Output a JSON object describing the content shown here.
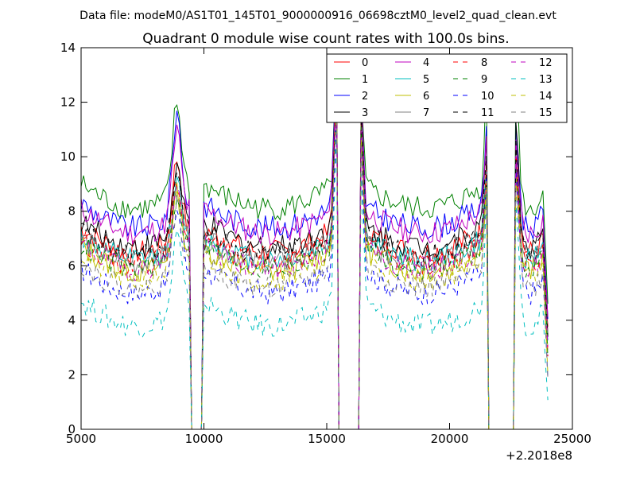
{
  "chart_data": {
    "type": "line",
    "suptitle": "Data file: modeM0/AS1T01_145T01_9000000916_06698cztM0_level2_quad_clean.evt",
    "title": "Quadrant 0 module wise count rates with 100.0s bins.",
    "xlabel": "",
    "ylabel": "",
    "x_offset_label": "+2.2018e8",
    "xlim": [
      5000,
      25000
    ],
    "ylim": [
      0,
      14
    ],
    "xticks": [
      5000,
      10000,
      15000,
      20000,
      25000
    ],
    "yticks": [
      0,
      2,
      4,
      6,
      8,
      10,
      12,
      14
    ],
    "bin_seconds": 100,
    "grid": false,
    "legend_position": "top-right",
    "legend_columns": 4,
    "gaps": [
      [
        9500,
        9900
      ],
      [
        15500,
        16300
      ],
      [
        21600,
        22600
      ]
    ],
    "series": [
      {
        "name": "0",
        "color": "#ff0000",
        "dash": "solid",
        "base": 7.4,
        "peak1": 10.3,
        "peak2": 13.5,
        "peak3": 10.0
      },
      {
        "name": "1",
        "color": "#008000",
        "dash": "solid",
        "base": 9.0,
        "peak1": 12.3,
        "peak2": 13.0,
        "peak3": 13.3
      },
      {
        "name": "2",
        "color": "#0000ff",
        "dash": "solid",
        "base": 8.3,
        "peak1": 12.0,
        "peak2": 13.0,
        "peak3": 11.5
      },
      {
        "name": "3",
        "color": "#000000",
        "dash": "solid",
        "base": 7.6,
        "peak1": 10.0,
        "peak2": 13.0,
        "peak3": 11.5
      },
      {
        "name": "4",
        "color": "#bf00bf",
        "dash": "solid",
        "base": 8.1,
        "peak1": 11.3,
        "peak2": 13.5,
        "peak3": 10.8
      },
      {
        "name": "5",
        "color": "#00bfbf",
        "dash": "solid",
        "base": 7.1,
        "peak1": 9.3,
        "peak2": 12.5,
        "peak3": 10.0
      },
      {
        "name": "6",
        "color": "#bfbf00",
        "dash": "solid",
        "base": 6.7,
        "peak1": 9.0,
        "peak2": 12.3,
        "peak3": 9.5
      },
      {
        "name": "7",
        "color": "#808080",
        "dash": "solid",
        "base": 7.0,
        "peak1": 9.2,
        "peak2": 12.0,
        "peak3": 9.8
      },
      {
        "name": "8",
        "color": "#ff0000",
        "dash": "dashed",
        "base": 7.0,
        "peak1": 9.5,
        "peak2": 12.5,
        "peak3": 10.2
      },
      {
        "name": "9",
        "color": "#008000",
        "dash": "dashed",
        "base": 6.8,
        "peak1": 9.0,
        "peak2": 12.3,
        "peak3": 10.0
      },
      {
        "name": "10",
        "color": "#0000ff",
        "dash": "dashed",
        "base": 5.9,
        "peak1": 8.5,
        "peak2": 12.0,
        "peak3": 9.5
      },
      {
        "name": "11",
        "color": "#000000",
        "dash": "dashed",
        "base": 7.3,
        "peak1": 9.8,
        "peak2": 12.8,
        "peak3": 10.5
      },
      {
        "name": "12",
        "color": "#bf00bf",
        "dash": "dashed",
        "base": 6.8,
        "peak1": 9.2,
        "peak2": 12.2,
        "peak3": 9.8
      },
      {
        "name": "13",
        "color": "#00bfbf",
        "dash": "dashed",
        "base": 4.7,
        "peak1": 7.5,
        "peak2": 10.8,
        "peak3": 9.0
      },
      {
        "name": "14",
        "color": "#bfbf00",
        "dash": "dashed",
        "base": 6.4,
        "peak1": 8.8,
        "peak2": 12.0,
        "peak3": 9.6
      },
      {
        "name": "15",
        "color": "#808080",
        "dash": "dashed",
        "base": 6.1,
        "peak1": 8.6,
        "peak2": 11.8,
        "peak3": 9.4
      }
    ]
  }
}
